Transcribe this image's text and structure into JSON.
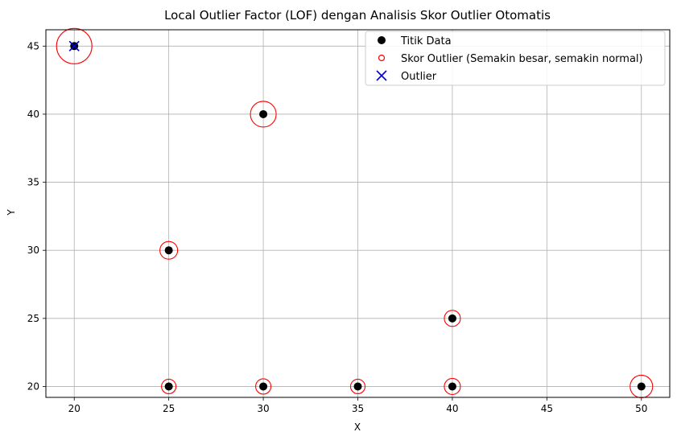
{
  "chart_data": {
    "type": "scatter",
    "title": "Local Outlier Factor (LOF) dengan Analisis Skor Outlier Otomatis",
    "xlabel": "X",
    "ylabel": "Y",
    "xlim": [
      18.5,
      51.5
    ],
    "ylim": [
      19.2,
      46.2
    ],
    "xticks": [
      20,
      25,
      30,
      35,
      40,
      45,
      50
    ],
    "yticks": [
      20,
      25,
      30,
      35,
      40,
      45
    ],
    "grid": true,
    "legend_position": "top-right",
    "colors": {
      "data": "#000000",
      "score": "#ff0000",
      "outlier": "#0000cc",
      "grid": "#b0b0b0"
    },
    "series": [
      {
        "name": "Titik Data",
        "marker": "filled-circle",
        "points": [
          {
            "x": 20,
            "y": 45
          },
          {
            "x": 25,
            "y": 30
          },
          {
            "x": 25,
            "y": 20
          },
          {
            "x": 30,
            "y": 40
          },
          {
            "x": 30,
            "y": 20
          },
          {
            "x": 35,
            "y": 20
          },
          {
            "x": 40,
            "y": 25
          },
          {
            "x": 40,
            "y": 20
          },
          {
            "x": 50,
            "y": 20
          }
        ]
      },
      {
        "name": "Skor Outlier (Semakin besar, semakin normal)",
        "marker": "open-circle",
        "points": [
          {
            "x": 20,
            "y": 45,
            "score": 2.2
          },
          {
            "x": 25,
            "y": 30,
            "score": 1.1
          },
          {
            "x": 25,
            "y": 20,
            "score": 0.9
          },
          {
            "x": 30,
            "y": 40,
            "score": 1.6
          },
          {
            "x": 30,
            "y": 20,
            "score": 0.95
          },
          {
            "x": 35,
            "y": 20,
            "score": 0.9
          },
          {
            "x": 40,
            "y": 25,
            "score": 1.0
          },
          {
            "x": 40,
            "y": 20,
            "score": 1.0
          },
          {
            "x": 50,
            "y": 20,
            "score": 1.4
          }
        ]
      },
      {
        "name": "Outlier",
        "marker": "x",
        "points": [
          {
            "x": 20,
            "y": 45
          }
        ]
      }
    ]
  }
}
